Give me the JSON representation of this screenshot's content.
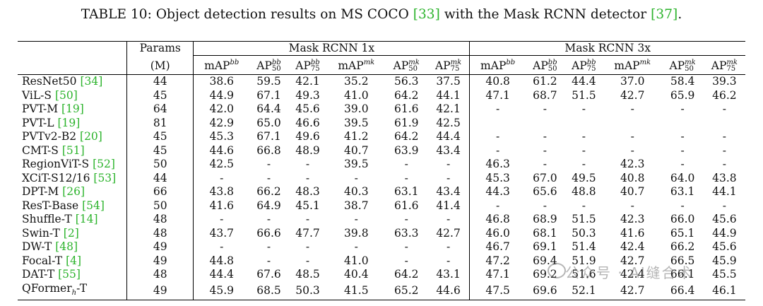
{
  "caption": {
    "prefix": "TABLE 10: Object detection results on MS COCO ",
    "ref1": "[33]",
    "middle": " with the Mask RCNN detector ",
    "ref2": "[37]",
    "suffix": "."
  },
  "header": {
    "params_label": "Params",
    "params_unit": "(M)",
    "group1": "Mask RCNN 1x",
    "group2": "Mask RCNN 3x",
    "map": "mAP",
    "ap": "AP",
    "sup_bb": "bb",
    "sup_mk": "mk",
    "sub50": "50",
    "sub75": "75"
  },
  "rows": [
    {
      "name": "ResNet50",
      "ref": "[34]",
      "params": "44",
      "v": [
        "38.6",
        "59.5",
        "42.1",
        "35.2",
        "56.3",
        "37.5",
        "40.8",
        "61.2",
        "44.4",
        "37.0",
        "58.4",
        "39.3"
      ]
    },
    {
      "name": "ViL-S",
      "ref": "[50]",
      "params": "45",
      "v": [
        "44.9",
        "67.1",
        "49.3",
        "41.0",
        "64.2",
        "44.1",
        "47.1",
        "68.7",
        "51.5",
        "42.7",
        "65.9",
        "46.2"
      ]
    },
    {
      "name": "PVT-M",
      "ref": "[19]",
      "params": "64",
      "v": [
        "42.0",
        "64.4",
        "45.6",
        "39.0",
        "61.6",
        "42.1",
        "-",
        "-",
        "-",
        "-",
        "-",
        "-"
      ]
    },
    {
      "name": "PVT-L",
      "ref": "[19]",
      "params": "81",
      "v": [
        "42.9",
        "65.0",
        "46.6",
        "39.5",
        "61.9",
        "42.5",
        "",
        "",
        "",
        "",
        "",
        ""
      ]
    },
    {
      "name": "PVTv2-B2",
      "ref": "[20]",
      "params": "45",
      "v": [
        "45.3",
        "67.1",
        "49.6",
        "41.2",
        "64.2",
        "44.4",
        "-",
        "-",
        "-",
        "-",
        "-",
        "-"
      ]
    },
    {
      "name": "CMT-S",
      "ref": "[51]",
      "params": "45",
      "v": [
        "44.6",
        "66.8",
        "48.9",
        "40.7",
        "63.9",
        "43.4",
        "-",
        "-",
        "-",
        "-",
        "-",
        "-"
      ]
    },
    {
      "name": "RegionViT-S",
      "ref": "[52]",
      "params": "50",
      "v": [
        "42.5",
        "-",
        "-",
        "39.5",
        "-",
        "-",
        "46.3",
        "-",
        "-",
        "42.3",
        "-",
        "-"
      ]
    },
    {
      "name": "XCiT-S12/16",
      "ref": "[53]",
      "params": "44",
      "v": [
        "-",
        "-",
        "-",
        "-",
        "-",
        "-",
        "45.3",
        "67.0",
        "49.5",
        "40.8",
        "64.0",
        "43.8"
      ]
    },
    {
      "name": "DPT-M",
      "ref": "[26]",
      "params": "66",
      "v": [
        "43.8",
        "66.2",
        "48.3",
        "40.3",
        "63.1",
        "43.4",
        "44.3",
        "65.6",
        "48.8",
        "40.7",
        "63.1",
        "44.1"
      ]
    },
    {
      "name": "ResT-Base",
      "ref": "[54]",
      "params": "50",
      "v": [
        "41.6",
        "64.9",
        "45.1",
        "38.7",
        "61.6",
        "41.4",
        "-",
        "-",
        "-",
        "-",
        "-",
        "-"
      ]
    },
    {
      "name": "Shuffle-T",
      "ref": "[14]",
      "params": "48",
      "v": [
        "-",
        "-",
        "-",
        "-",
        "-",
        "-",
        "46.8",
        "68.9",
        "51.5",
        "42.3",
        "66.0",
        "45.6"
      ]
    },
    {
      "name": "Swin-T",
      "ref": "[2]",
      "params": "48",
      "v": [
        "43.7",
        "66.6",
        "47.7",
        "39.8",
        "63.3",
        "42.7",
        "46.0",
        "68.1",
        "50.3",
        "41.6",
        "65.1",
        "44.9"
      ]
    },
    {
      "name": "DW-T",
      "ref": "[48]",
      "params": "49",
      "v": [
        "-",
        "-",
        "-",
        "-",
        "-",
        "-",
        "46.7",
        "69.1",
        "51.4",
        "42.4",
        "66.2",
        "45.6"
      ]
    },
    {
      "name": "Focal-T",
      "ref": "[4]",
      "params": "49",
      "v": [
        "44.8",
        "-",
        "-",
        "41.0",
        "-",
        "-",
        "47.2",
        "69.4",
        "51.9",
        "42.7",
        "66.5",
        "45.9"
      ]
    },
    {
      "name": "DAT-T",
      "ref": "[55]",
      "params": "48",
      "v": [
        "44.4",
        "67.6",
        "48.5",
        "40.4",
        "64.2",
        "43.1",
        "47.1",
        "69.2",
        "51.6",
        "42.4",
        "66.1",
        "45.5"
      ]
    },
    {
      "name": "QFormer",
      "name_sub": "h",
      "name_suffix": "-T",
      "ref": "",
      "params": "49",
      "v": [
        "45.9",
        "68.5",
        "50.3",
        "41.5",
        "65.2",
        "44.6",
        "47.5",
        "69.6",
        "52.1",
        "42.7",
        "66.4",
        "46.1"
      ]
    }
  ],
  "watermark": "公众号 · AI缝合术"
}
